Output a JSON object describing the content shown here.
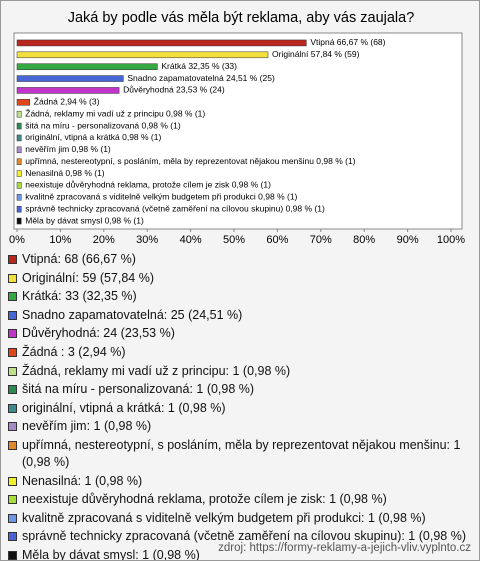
{
  "chart_data": {
    "type": "hbar",
    "title": "Jaká by podle vás měla být reklama, aby vás zaujala?",
    "values": [
      66.67,
      57.84,
      32.35,
      24.51,
      23.53,
      2.94,
      0.98,
      0.98,
      0.98,
      0.98,
      0.98,
      0.98,
      0.98,
      0.98,
      0.98,
      0.98
    ],
    "value_labels": [
      "Vtipná 66,67 % (68)",
      "Originální 57,84 % (59)",
      "Krátká 32,35 % (33)",
      "Snadno zapamatovatelná 24,51 % (25)",
      "Důvěryhodná 23,53 % (24)",
      "Žádná  2,94 % (3)",
      "Žádná, reklamy mi vadí už z principu 0,98 % (1)",
      "šitá na míru - personalizovaná 0,98 % (1)",
      "originální, vtipná a krátká 0,98 % (1)",
      "nevěřím jim 0,98 % (1)",
      "upřímná, nestereotypní, s posláním, měla by reprezentovat nějakou menšinu 0,98 % (1)",
      "Nenasilná 0,98 % (1)",
      "neexistuje důvěryhodná reklama, protože cílem je zisk 0,98 % (1)",
      "kvalitně zpracovaná s viditelně velkým budgetem při produkci 0,98 % (1)",
      "správně technicky zpracovaná (včetně zaměření na cílovou skupinu) 0,98 % (1)",
      "Měla by dávat smysl 0,98 % (1)"
    ],
    "legend_labels": [
      "Vtipná: 68 (66,67 %)",
      "Originální: 59 (57,84 %)",
      "Krátká: 33 (32,35 %)",
      "Snadno zapamatovatelná: 25 (24,51 %)",
      "Důvěryhodná: 24 (23,53 %)",
      "Žádná : 3 (2,94 %)",
      "Žádná, reklamy mi vadí už z principu: 1 (0,98 %)",
      "šitá na míru - personalizovaná: 1 (0,98 %)",
      "originální, vtipná a krátká: 1 (0,98 %)",
      "nevěřím jim: 1 (0,98 %)",
      "upřímná, nestereotypní, s posláním, měla by reprezentovat nějakou menšinu: 1 (0,98 %)",
      "Nenasilná: 1 (0,98 %)",
      "neexistuje důvěryhodná reklama, protože cílem je zisk: 1 (0,98 %)",
      "kvalitně zpracovaná s viditelně velkým budgetem při produkci: 1 (0,98 %)",
      "správně technicky zpracovaná (včetně zaměření na cílovou skupinu): 1 (0,98 %)",
      "Měla by dávat smysl: 1 (0,98 %)"
    ],
    "colors": [
      "#b8261e",
      "#f2df3c",
      "#35a844",
      "#4767d6",
      "#c235c9",
      "#e0461a",
      "#bfe08a",
      "#2b8a52",
      "#3f8a8c",
      "#a58ac6",
      "#e2872a",
      "#f3ef2c",
      "#a6de3e",
      "#6e98e4",
      "#4a62d2",
      "#111111"
    ],
    "xlim": [
      0,
      100
    ],
    "xticks": [
      {
        "value": 0,
        "label": "0%"
      },
      {
        "value": 10,
        "label": "10%"
      },
      {
        "value": 20,
        "label": "20%"
      },
      {
        "value": 30,
        "label": "30%"
      },
      {
        "value": 40,
        "label": "40%"
      },
      {
        "value": 50,
        "label": "50%"
      },
      {
        "value": 60,
        "label": "60%"
      },
      {
        "value": 70,
        "label": "70%"
      },
      {
        "value": 80,
        "label": "80%"
      },
      {
        "value": 90,
        "label": "90%"
      },
      {
        "value": 100,
        "label": "100%"
      }
    ],
    "grid": false,
    "source": "zdroj: https://formy-reklamy-a-jejich-vliv.vyplnto.cz"
  }
}
